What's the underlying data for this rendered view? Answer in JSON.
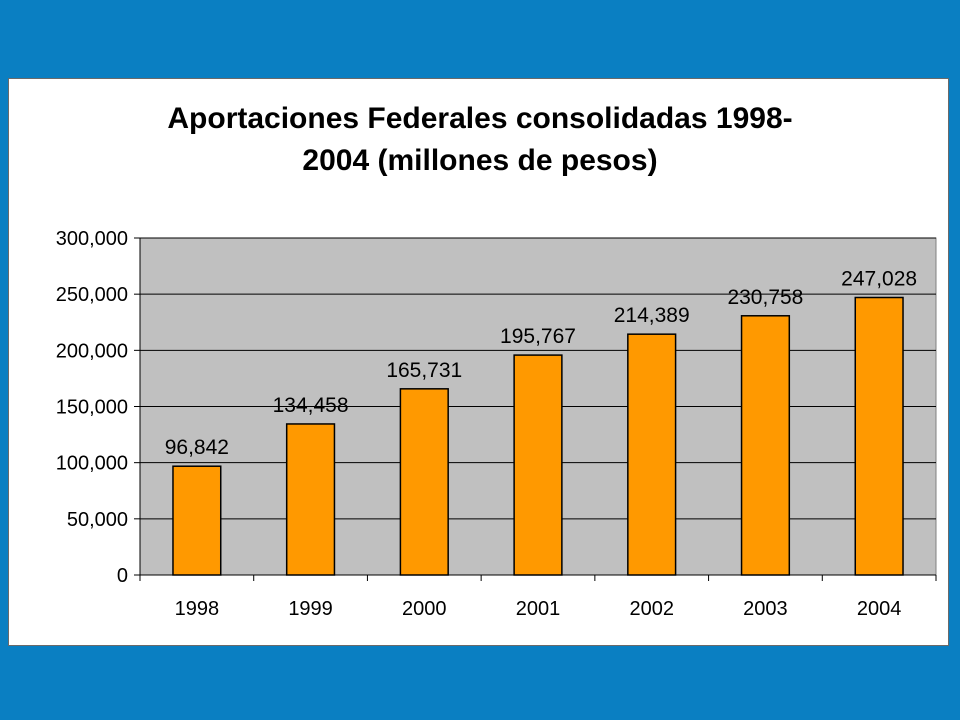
{
  "colors": {
    "background": "#0a7fc2",
    "plot_area": "#c0c0c0",
    "bar_fill": "#ff9900",
    "bar_stroke": "#000000"
  },
  "chart_data": {
    "type": "bar",
    "title_lines": [
      "Aportaciones Federales consolidadas 1998-",
      "2004 (millones de pesos)"
    ],
    "categories": [
      "1998",
      "1999",
      "2000",
      "2001",
      "2002",
      "2003",
      "2004"
    ],
    "values": [
      96842,
      134458,
      165731,
      195767,
      214389,
      230758,
      247028
    ],
    "value_labels": [
      "96,842",
      "134,458",
      "165,731",
      "195,767",
      "214,389",
      "230,758",
      "247,028"
    ],
    "ylim": [
      0,
      300000
    ],
    "yticks": [
      0,
      50000,
      100000,
      150000,
      200000,
      250000,
      300000
    ],
    "ytick_labels": [
      "0",
      "50,000",
      "100,000",
      "150,000",
      "200,000",
      "250,000",
      "300,000"
    ],
    "grid": true,
    "legend": "none"
  }
}
